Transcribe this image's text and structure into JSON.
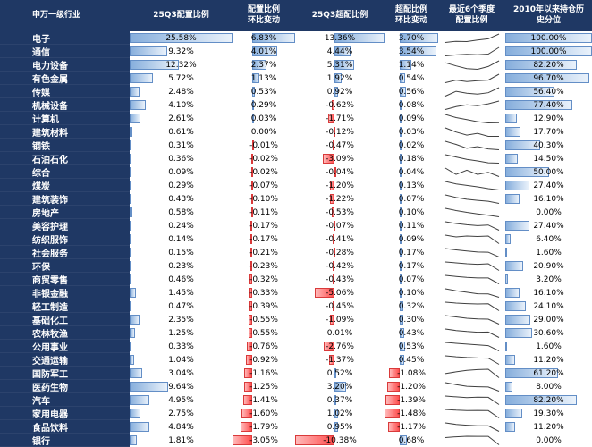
{
  "colors": {
    "navy": "#1F3864",
    "bar_blue_border": "#638EC6",
    "bar_blue_start": "#86AEDC",
    "bar_blue_end": "#EAF2FB",
    "bar_red_border": "#D93A3A",
    "bar_red_start": "#FF4E4E",
    "bar_red_end": "#FFB9B9",
    "spark_line": "#404040"
  },
  "chart_data": {
    "type": "table",
    "title": "申万一级行业基金配置比例表",
    "columns": [
      {
        "id": "industry",
        "cls": "c1",
        "lines": [
          "申万一级行业"
        ]
      },
      {
        "id": "alloc",
        "cls": "c2",
        "lines": [
          "25Q3配置比例"
        ]
      },
      {
        "id": "alloc-chg",
        "cls": "c3",
        "lines": [
          "配置比例",
          "环比变动"
        ]
      },
      {
        "id": "over",
        "cls": "c4",
        "lines": [
          "25Q3超配比例"
        ]
      },
      {
        "id": "over-chg",
        "cls": "c5",
        "lines": [
          "超配比例",
          "环比变动"
        ]
      },
      {
        "id": "trend",
        "cls": "c6",
        "lines": [
          "最近6个季度",
          "配置比例"
        ]
      },
      {
        "id": "hist",
        "cls": "c7",
        "lines": [
          "2010年以来持仓历",
          "史分位"
        ]
      }
    ],
    "rows": [
      {
        "name": "电子",
        "alloc": "25.58%",
        "alloc_chg": "6.83%",
        "over": "13.36%",
        "over_chg": "3.70%",
        "hist": "100.00%",
        "spark": [
          13.5,
          15.2,
          14.8,
          16.9,
          18.7,
          25.58
        ]
      },
      {
        "name": "通信",
        "alloc": "9.32%",
        "alloc_chg": "4.01%",
        "over": "4.44%",
        "over_chg": "3.54%",
        "hist": "100.00%",
        "spark": [
          4.2,
          4.8,
          5.1,
          4.9,
          5.3,
          9.32
        ]
      },
      {
        "name": "电力设备",
        "alloc": "12.32%",
        "alloc_chg": "2.37%",
        "over": "5.31%",
        "over_chg": "1.14%",
        "hist": "82.20%",
        "spark": [
          11.5,
          10.2,
          9.1,
          8.8,
          9.95,
          12.32
        ]
      },
      {
        "name": "有色金属",
        "alloc": "5.72%",
        "alloc_chg": "1.13%",
        "over": "1.92%",
        "over_chg": "0.54%",
        "hist": "96.70%",
        "spark": [
          4.1,
          4.6,
          4.3,
          4.5,
          4.59,
          5.72
        ]
      },
      {
        "name": "传媒",
        "alloc": "2.48%",
        "alloc_chg": "0.53%",
        "over": "0.92%",
        "over_chg": "0.56%",
        "hist": "56.40%",
        "spark": [
          1.6,
          2.1,
          1.9,
          1.8,
          1.95,
          2.48
        ]
      },
      {
        "name": "机械设备",
        "alloc": "4.10%",
        "alloc_chg": "0.29%",
        "over": "-0.62%",
        "over_chg": "0.08%",
        "hist": "77.40%",
        "spark": [
          3.2,
          3.5,
          3.7,
          3.6,
          3.81,
          4.1
        ]
      },
      {
        "name": "计算机",
        "alloc": "2.61%",
        "alloc_chg": "0.03%",
        "over": "-1.71%",
        "over_chg": "0.09%",
        "hist": "12.90%",
        "spark": [
          3.4,
          3.1,
          2.9,
          2.7,
          2.58,
          2.61
        ]
      },
      {
        "name": "建筑材料",
        "alloc": "0.61%",
        "alloc_chg": "0.00%",
        "over": "-0.12%",
        "over_chg": "0.03%",
        "hist": "17.70%",
        "spark": [
          0.75,
          0.68,
          0.63,
          0.66,
          0.61,
          0.61
        ]
      },
      {
        "name": "钢铁",
        "alloc": "0.31%",
        "alloc_chg": "-0.01%",
        "over": "-0.47%",
        "over_chg": "0.02%",
        "hist": "40.30%",
        "spark": [
          0.42,
          0.38,
          0.33,
          0.35,
          0.32,
          0.31
        ]
      },
      {
        "name": "石油石化",
        "alloc": "0.36%",
        "alloc_chg": "-0.02%",
        "over": "-3.09%",
        "over_chg": "0.18%",
        "hist": "14.50%",
        "spark": [
          0.9,
          0.75,
          0.6,
          0.5,
          0.38,
          0.36
        ]
      },
      {
        "name": "综合",
        "alloc": "0.09%",
        "alloc_chg": "-0.02%",
        "over": "-0.04%",
        "over_chg": "0.04%",
        "hist": "50.00%",
        "spark": [
          0.13,
          0.1,
          0.12,
          0.1,
          0.11,
          0.09
        ]
      },
      {
        "name": "煤炭",
        "alloc": "0.29%",
        "alloc_chg": "-0.07%",
        "over": "-1.20%",
        "over_chg": "0.13%",
        "hist": "27.40%",
        "spark": [
          0.72,
          0.6,
          0.52,
          0.45,
          0.36,
          0.29
        ]
      },
      {
        "name": "建筑装饰",
        "alloc": "0.43%",
        "alloc_chg": "-0.10%",
        "over": "-1.22%",
        "over_chg": "0.07%",
        "hist": "16.10%",
        "spark": [
          0.82,
          0.7,
          0.62,
          0.57,
          0.53,
          0.43
        ]
      },
      {
        "name": "房地产",
        "alloc": "0.58%",
        "alloc_chg": "-0.11%",
        "over": "-0.53%",
        "over_chg": "0.10%",
        "hist": "0.00%",
        "spark": [
          1.15,
          1.0,
          0.88,
          0.78,
          0.69,
          0.58
        ]
      },
      {
        "name": "美容护理",
        "alloc": "0.24%",
        "alloc_chg": "-0.17%",
        "over": "-0.07%",
        "over_chg": "0.11%",
        "hist": "27.40%",
        "spark": [
          0.52,
          0.46,
          0.42,
          0.39,
          0.41,
          0.24
        ]
      },
      {
        "name": "纺织服饰",
        "alloc": "0.14%",
        "alloc_chg": "-0.17%",
        "over": "-0.41%",
        "over_chg": "0.09%",
        "hist": "6.40%",
        "spark": [
          0.33,
          0.29,
          0.31,
          0.3,
          0.31,
          0.14
        ]
      },
      {
        "name": "社会服务",
        "alloc": "0.15%",
        "alloc_chg": "-0.21%",
        "over": "-0.28%",
        "over_chg": "0.17%",
        "hist": "1.60%",
        "spark": [
          0.52,
          0.46,
          0.41,
          0.37,
          0.36,
          0.15
        ]
      },
      {
        "name": "环保",
        "alloc": "0.23%",
        "alloc_chg": "-0.23%",
        "over": "-0.42%",
        "over_chg": "0.17%",
        "hist": "20.90%",
        "spark": [
          0.52,
          0.49,
          0.46,
          0.44,
          0.46,
          0.23
        ]
      },
      {
        "name": "商贸零售",
        "alloc": "0.46%",
        "alloc_chg": "-0.32%",
        "over": "-0.43%",
        "over_chg": "0.07%",
        "hist": "3.20%",
        "spark": [
          0.92,
          0.86,
          0.81,
          0.78,
          0.78,
          0.46
        ]
      },
      {
        "name": "非银金融",
        "alloc": "1.45%",
        "alloc_chg": "-0.33%",
        "over": "-5.06%",
        "over_chg": "0.10%",
        "hist": "16.10%",
        "spark": [
          2.3,
          2.1,
          1.95,
          1.8,
          1.78,
          1.45
        ]
      },
      {
        "name": "轻工制造",
        "alloc": "0.47%",
        "alloc_chg": "-0.39%",
        "over": "-0.45%",
        "over_chg": "0.32%",
        "hist": "24.10%",
        "spark": [
          0.95,
          0.9,
          0.87,
          0.85,
          0.86,
          0.47
        ]
      },
      {
        "name": "基础化工",
        "alloc": "2.35%",
        "alloc_chg": "-0.55%",
        "over": "-1.09%",
        "over_chg": "0.30%",
        "hist": "29.00%",
        "spark": [
          3.3,
          3.15,
          3.0,
          2.92,
          2.9,
          2.35
        ]
      },
      {
        "name": "农林牧渔",
        "alloc": "1.25%",
        "alloc_chg": "-0.55%",
        "over": "0.01%",
        "over_chg": "0.43%",
        "hist": "30.60%",
        "spark": [
          2.1,
          1.95,
          1.85,
          1.78,
          1.8,
          1.25
        ]
      },
      {
        "name": "公用事业",
        "alloc": "0.33%",
        "alloc_chg": "-0.76%",
        "over": "-2.76%",
        "over_chg": "0.53%",
        "hist": "1.60%",
        "spark": [
          1.55,
          1.42,
          1.3,
          1.2,
          1.09,
          0.33
        ]
      },
      {
        "name": "交通运输",
        "alloc": "1.04%",
        "alloc_chg": "-0.92%",
        "over": "-1.37%",
        "over_chg": "0.45%",
        "hist": "11.20%",
        "spark": [
          2.3,
          2.15,
          2.05,
          1.98,
          1.96,
          1.04
        ]
      },
      {
        "name": "国防军工",
        "alloc": "3.04%",
        "alloc_chg": "-1.16%",
        "over": "0.52%",
        "over_chg": "-1.08%",
        "hist": "61.20%",
        "spark": [
          3.6,
          3.85,
          4.05,
          4.15,
          4.2,
          3.04
        ]
      },
      {
        "name": "医药生物",
        "alloc": "9.64%",
        "alloc_chg": "-1.25%",
        "over": "3.20%",
        "over_chg": "-1.20%",
        "hist": "8.00%",
        "spark": [
          12.2,
          11.6,
          11.1,
          10.95,
          10.89,
          9.64
        ]
      },
      {
        "name": "汽车",
        "alloc": "4.95%",
        "alloc_chg": "-1.41%",
        "over": "0.37%",
        "over_chg": "-1.39%",
        "hist": "82.20%",
        "spark": [
          6.6,
          6.45,
          6.3,
          6.38,
          6.36,
          4.95
        ]
      },
      {
        "name": "家用电器",
        "alloc": "2.75%",
        "alloc_chg": "-1.60%",
        "over": "1.02%",
        "over_chg": "-1.48%",
        "hist": "19.30%",
        "spark": [
          4.6,
          4.45,
          4.35,
          4.38,
          4.35,
          2.75
        ]
      },
      {
        "name": "食品饮料",
        "alloc": "4.84%",
        "alloc_chg": "-1.79%",
        "over": "0.95%",
        "over_chg": "-1.17%",
        "hist": "11.20%",
        "spark": [
          7.6,
          7.1,
          6.85,
          6.65,
          6.63,
          4.84
        ]
      },
      {
        "name": "银行",
        "alloc": "1.81%",
        "alloc_chg": "-3.05%",
        "over": "-10.38%",
        "over_chg": "0.68%",
        "hist": "0.00%",
        "spark": [
          4.4,
          4.7,
          4.9,
          4.88,
          4.86,
          1.81
        ]
      }
    ]
  }
}
